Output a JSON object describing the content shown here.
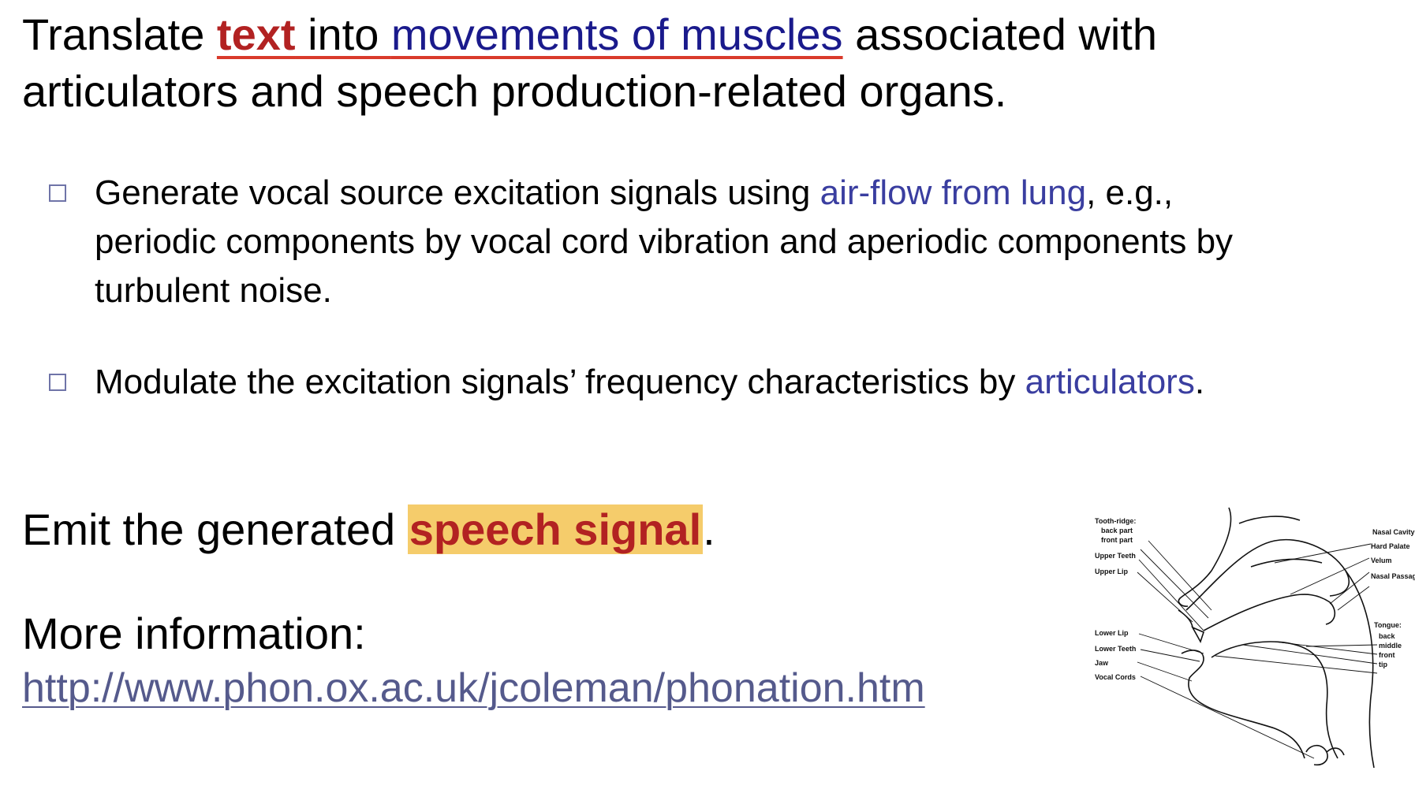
{
  "intro": {
    "part1": "Translate ",
    "text_kw": "text",
    "part2": " into ",
    "movements_kw": "movements of muscles",
    "part3": " associated with articulators and speech production-related organs."
  },
  "bullets": [
    {
      "lead": "Generate vocal source excitation signals using ",
      "accent": "air-flow from lung",
      "tail": ", e.g., periodic components by vocal cord vibration and aperiodic components by turbulent noise."
    },
    {
      "lead": "Modulate the excitation signals’ frequency characteristics by ",
      "accent": "articulators",
      "tail": "."
    }
  ],
  "emit": {
    "lead": "Emit the generated ",
    "highlight": "speech signal",
    "tail": "."
  },
  "more": {
    "label": "More information:",
    "link": "http://www.phon.ox.ac.uk/jcoleman/phonation.htm"
  },
  "diagram": {
    "left_labels": [
      "Tooth-ridge:",
      "back part",
      "front part",
      "Upper Teeth",
      "Upper Lip",
      "Lower Lip",
      "Lower Teeth",
      "Jaw",
      "Vocal Cords"
    ],
    "right_labels": [
      "Nasal Cavity",
      "Hard Palate",
      "Velum",
      "Nasal Passage",
      "Tongue:",
      "back",
      "middle",
      "front",
      "tip"
    ]
  },
  "colors": {
    "keyword_red": "#b22222",
    "keyword_blue": "#1a1a8c",
    "accent_blue": "#3a3ea0",
    "highlight": "#f5cc6b",
    "link": "#555a8c"
  }
}
